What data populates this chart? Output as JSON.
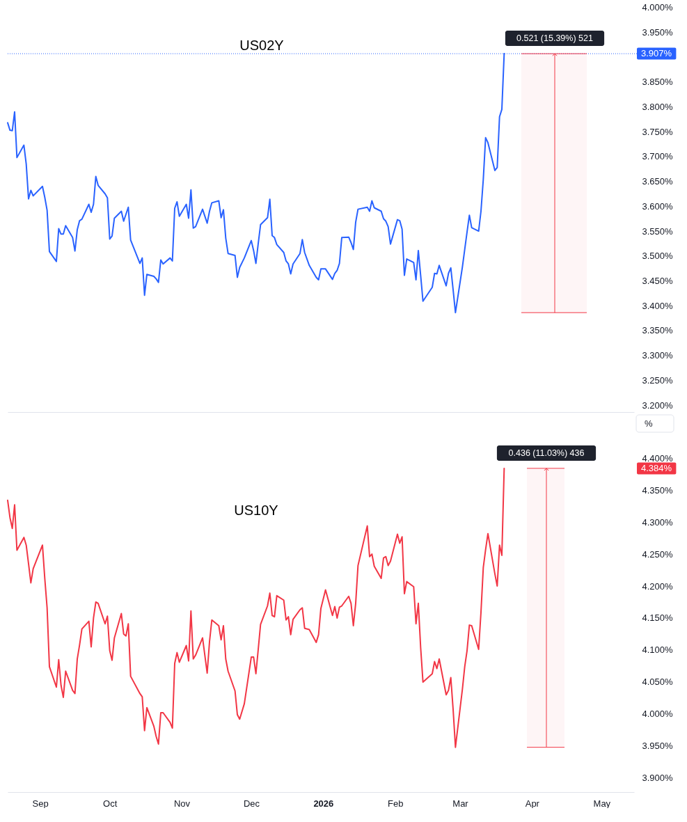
{
  "chart_data": [
    {
      "type": "line",
      "title": "US02Y",
      "x": [
        "2025-08-18",
        "2025-08-19",
        "2025-08-20",
        "2025-08-21",
        "2025-08-22",
        "2025-08-25",
        "2025-08-26",
        "2025-08-27",
        "2025-08-28",
        "2025-08-29",
        "2025-09-02",
        "2025-09-03",
        "2025-09-04",
        "2025-09-05",
        "2025-09-08",
        "2025-09-09",
        "2025-09-10",
        "2025-09-11",
        "2025-09-12",
        "2025-09-15",
        "2025-09-16",
        "2025-09-17",
        "2025-09-18",
        "2025-09-19",
        "2025-09-22",
        "2025-09-23",
        "2025-09-24",
        "2025-09-25",
        "2025-09-26",
        "2025-09-29",
        "2025-09-30",
        "2025-10-01",
        "2025-10-02",
        "2025-10-03",
        "2025-10-06",
        "2025-10-07",
        "2025-10-08",
        "2025-10-09",
        "2025-10-10",
        "2025-10-14",
        "2025-10-15",
        "2025-10-16",
        "2025-10-17",
        "2025-10-20",
        "2025-10-21",
        "2025-10-22",
        "2025-10-23",
        "2025-10-24",
        "2025-10-27",
        "2025-10-28",
        "2025-10-29",
        "2025-10-30",
        "2025-10-31",
        "2025-11-03",
        "2025-11-04",
        "2025-11-05",
        "2025-11-06",
        "2025-11-07",
        "2025-11-10",
        "2025-11-12",
        "2025-11-13",
        "2025-11-14",
        "2025-11-17",
        "2025-11-18",
        "2025-11-19",
        "2025-11-20",
        "2025-11-21",
        "2025-11-24",
        "2025-11-25",
        "2025-11-26",
        "2025-11-28",
        "2025-12-01",
        "2025-12-02",
        "2025-12-03",
        "2025-12-04",
        "2025-12-05",
        "2025-12-08",
        "2025-12-09",
        "2025-12-10",
        "2025-12-11",
        "2025-12-12",
        "2025-12-15",
        "2025-12-16",
        "2025-12-17",
        "2025-12-18",
        "2025-12-19",
        "2025-12-22",
        "2025-12-23",
        "2025-12-24",
        "2025-12-26",
        "2025-12-29",
        "2025-12-30",
        "2025-12-31",
        "2026-01-02",
        "2026-01-05",
        "2026-01-06",
        "2026-01-07",
        "2026-01-08",
        "2026-01-09",
        "2026-01-12",
        "2026-01-13",
        "2026-01-14",
        "2026-01-15",
        "2026-01-16",
        "2026-01-20",
        "2026-01-21",
        "2026-01-22",
        "2026-01-23",
        "2026-01-26",
        "2026-01-27",
        "2026-01-28",
        "2026-01-29",
        "2026-01-30",
        "2026-02-02",
        "2026-02-03",
        "2026-02-04",
        "2026-02-05",
        "2026-02-06",
        "2026-02-09",
        "2026-02-10",
        "2026-02-11",
        "2026-02-12",
        "2026-02-13",
        "2026-02-17",
        "2026-02-18",
        "2026-02-19",
        "2026-02-20",
        "2026-02-23",
        "2026-02-24",
        "2026-02-25",
        "2026-02-26",
        "2026-02-27",
        "2026-03-02",
        "2026-03-03",
        "2026-03-04",
        "2026-03-05",
        "2026-03-06",
        "2026-03-09",
        "2026-03-10",
        "2026-03-11",
        "2026-03-12",
        "2026-03-13",
        "2026-03-16",
        "2026-03-17",
        "2026-03-18",
        "2026-03-19",
        "2026-03-20"
      ],
      "series": [
        {
          "color": "#2962ff",
          "values": [
            3.768,
            3.753,
            3.752,
            3.79,
            3.698,
            3.723,
            3.685,
            3.615,
            3.632,
            3.621,
            3.64,
            3.618,
            3.592,
            3.509,
            3.489,
            3.555,
            3.544,
            3.544,
            3.561,
            3.537,
            3.51,
            3.553,
            3.571,
            3.574,
            3.604,
            3.588,
            3.604,
            3.66,
            3.642,
            3.625,
            3.617,
            3.534,
            3.54,
            3.576,
            3.59,
            3.57,
            3.584,
            3.598,
            3.532,
            3.485,
            3.496,
            3.421,
            3.463,
            3.459,
            3.454,
            3.447,
            3.492,
            3.484,
            3.496,
            3.49,
            3.596,
            3.609,
            3.58,
            3.604,
            3.576,
            3.633,
            3.556,
            3.559,
            3.594,
            3.566,
            3.59,
            3.607,
            3.611,
            3.577,
            3.593,
            3.536,
            3.505,
            3.501,
            3.457,
            3.477,
            3.496,
            3.531,
            3.511,
            3.485,
            3.525,
            3.563,
            3.577,
            3.614,
            3.541,
            3.537,
            3.523,
            3.507,
            3.49,
            3.484,
            3.464,
            3.484,
            3.505,
            3.533,
            3.507,
            3.481,
            3.457,
            3.452,
            3.474,
            3.474,
            3.453,
            3.465,
            3.471,
            3.485,
            3.537,
            3.538,
            3.527,
            3.513,
            3.568,
            3.594,
            3.598,
            3.59,
            3.611,
            3.597,
            3.59,
            3.575,
            3.57,
            3.559,
            3.524,
            3.573,
            3.571,
            3.554,
            3.461,
            3.494,
            3.487,
            3.452,
            3.511,
            3.461,
            3.409,
            3.437,
            3.465,
            3.464,
            3.481,
            3.44,
            3.465,
            3.476,
            3.432,
            3.386,
            3.478,
            3.513,
            3.548,
            3.582,
            3.557,
            3.55,
            3.59,
            3.654,
            3.738,
            3.728,
            3.672,
            3.678,
            3.78,
            3.795,
            3.907
          ]
        }
      ],
      "xlim": [
        "2025-08-18",
        "2026-05-15"
      ],
      "ylim": [
        3.186,
        4.015
      ],
      "yticks": [
        {
          "value": 4.0,
          "label": "4.000%"
        },
        {
          "value": 3.95,
          "label": "3.950%"
        },
        {
          "value": 3.85,
          "label": "3.850%"
        },
        {
          "value": 3.8,
          "label": "3.800%"
        },
        {
          "value": 3.75,
          "label": "3.750%"
        },
        {
          "value": 3.7,
          "label": "3.700%"
        },
        {
          "value": 3.65,
          "label": "3.650%"
        },
        {
          "value": 3.6,
          "label": "3.600%"
        },
        {
          "value": 3.55,
          "label": "3.550%"
        },
        {
          "value": 3.5,
          "label": "3.500%"
        },
        {
          "value": 3.45,
          "label": "3.450%"
        },
        {
          "value": 3.4,
          "label": "3.400%"
        },
        {
          "value": 3.35,
          "label": "3.350%"
        },
        {
          "value": 3.3,
          "label": "3.300%"
        },
        {
          "value": 3.25,
          "label": "3.250%"
        },
        {
          "value": 3.2,
          "label": "3.200%"
        }
      ],
      "tick_labels": "y",
      "ref_lines": [
        {
          "axis": "y",
          "value": 3.907,
          "label": "3.907%",
          "color": "#2962ff",
          "line_style": "dotted"
        }
      ],
      "bands": [
        {
          "axis": "y",
          "from": 3.386,
          "to": 3.907,
          "label": "0.521 (15.39%) 521",
          "color": "#f23645"
        }
      ]
    },
    {
      "type": "line",
      "title": "US10Y",
      "x": [
        "2025-08-18",
        "2025-08-19",
        "2025-08-20",
        "2025-08-21",
        "2025-08-22",
        "2025-08-25",
        "2025-08-26",
        "2025-08-27",
        "2025-08-28",
        "2025-08-29",
        "2025-09-02",
        "2025-09-03",
        "2025-09-04",
        "2025-09-05",
        "2025-09-08",
        "2025-09-09",
        "2025-09-10",
        "2025-09-11",
        "2025-09-12",
        "2025-09-15",
        "2025-09-16",
        "2025-09-17",
        "2025-09-18",
        "2025-09-19",
        "2025-09-22",
        "2025-09-23",
        "2025-09-24",
        "2025-09-25",
        "2025-09-26",
        "2025-09-29",
        "2025-09-30",
        "2025-10-01",
        "2025-10-02",
        "2025-10-03",
        "2025-10-06",
        "2025-10-07",
        "2025-10-08",
        "2025-10-09",
        "2025-10-10",
        "2025-10-14",
        "2025-10-15",
        "2025-10-16",
        "2025-10-17",
        "2025-10-20",
        "2025-10-21",
        "2025-10-22",
        "2025-10-23",
        "2025-10-24",
        "2025-10-27",
        "2025-10-28",
        "2025-10-29",
        "2025-10-30",
        "2025-10-31",
        "2025-11-03",
        "2025-11-04",
        "2025-11-05",
        "2025-11-06",
        "2025-11-07",
        "2025-11-10",
        "2025-11-12",
        "2025-11-13",
        "2025-11-14",
        "2025-11-17",
        "2025-11-18",
        "2025-11-19",
        "2025-11-20",
        "2025-11-21",
        "2025-11-24",
        "2025-11-25",
        "2025-11-26",
        "2025-11-28",
        "2025-12-01",
        "2025-12-02",
        "2025-12-03",
        "2025-12-04",
        "2025-12-05",
        "2025-12-08",
        "2025-12-09",
        "2025-12-10",
        "2025-12-11",
        "2025-12-12",
        "2025-12-15",
        "2025-12-16",
        "2025-12-17",
        "2025-12-18",
        "2025-12-19",
        "2025-12-22",
        "2025-12-23",
        "2025-12-24",
        "2025-12-26",
        "2025-12-29",
        "2025-12-30",
        "2025-12-31",
        "2026-01-02",
        "2026-01-05",
        "2026-01-06",
        "2026-01-07",
        "2026-01-08",
        "2026-01-09",
        "2026-01-12",
        "2026-01-13",
        "2026-01-14",
        "2026-01-15",
        "2026-01-16",
        "2026-01-20",
        "2026-01-21",
        "2026-01-22",
        "2026-01-23",
        "2026-01-26",
        "2026-01-27",
        "2026-01-28",
        "2026-01-29",
        "2026-01-30",
        "2026-02-02",
        "2026-02-03",
        "2026-02-04",
        "2026-02-05",
        "2026-02-06",
        "2026-02-09",
        "2026-02-10",
        "2026-02-11",
        "2026-02-12",
        "2026-02-13",
        "2026-02-17",
        "2026-02-18",
        "2026-02-19",
        "2026-02-20",
        "2026-02-23",
        "2026-02-24",
        "2026-02-25",
        "2026-02-26",
        "2026-02-27",
        "2026-03-02",
        "2026-03-03",
        "2026-03-04",
        "2026-03-05",
        "2026-03-06",
        "2026-03-09",
        "2026-03-10",
        "2026-03-11",
        "2026-03-12",
        "2026-03-13",
        "2026-03-16",
        "2026-03-17",
        "2026-03-18",
        "2026-03-19",
        "2026-03-20"
      ],
      "series": [
        {
          "color": "#f23645",
          "values": [
            4.334,
            4.307,
            4.29,
            4.327,
            4.256,
            4.276,
            4.264,
            4.235,
            4.205,
            4.227,
            4.264,
            4.212,
            4.166,
            4.074,
            4.042,
            4.085,
            4.045,
            4.026,
            4.067,
            4.037,
            4.032,
            4.086,
            4.108,
            4.133,
            4.145,
            4.105,
            4.15,
            4.175,
            4.173,
            4.141,
            4.153,
            4.099,
            4.084,
            4.119,
            4.157,
            4.125,
            4.122,
            4.141,
            4.059,
            4.032,
            4.027,
            3.974,
            4.01,
            3.981,
            3.965,
            3.953,
            4.002,
            4.002,
            3.987,
            3.978,
            4.079,
            4.096,
            4.081,
            4.107,
            4.083,
            4.161,
            4.086,
            4.092,
            4.119,
            4.064,
            4.113,
            4.147,
            4.138,
            4.116,
            4.138,
            4.086,
            4.067,
            4.036,
            3.999,
            3.992,
            4.016,
            4.089,
            4.089,
            4.063,
            4.101,
            4.14,
            4.169,
            4.189,
            4.154,
            4.152,
            4.185,
            4.178,
            4.147,
            4.152,
            4.124,
            4.148,
            4.163,
            4.166,
            4.134,
            4.132,
            4.112,
            4.124,
            4.165,
            4.194,
            4.154,
            4.168,
            4.15,
            4.167,
            4.169,
            4.184,
            4.173,
            4.138,
            4.173,
            4.232,
            4.294,
            4.246,
            4.25,
            4.231,
            4.212,
            4.244,
            4.246,
            4.232,
            4.239,
            4.281,
            4.267,
            4.277,
            4.188,
            4.207,
            4.199,
            4.141,
            4.173,
            4.104,
            4.05,
            4.063,
            4.082,
            4.071,
            4.086,
            4.03,
            4.037,
            4.057,
            4.007,
            3.948,
            4.039,
            4.074,
            4.099,
            4.139,
            4.138,
            4.101,
            4.159,
            4.229,
            4.257,
            4.282,
            4.219,
            4.2,
            4.264,
            4.248,
            4.384
          ]
        }
      ],
      "xlim": [
        "2025-08-18",
        "2026-05-15"
      ],
      "xticks": [
        {
          "value": "2025-09-01",
          "label": "Sep"
        },
        {
          "value": "2025-10-01",
          "label": "Oct"
        },
        {
          "value": "2025-11-01",
          "label": "Nov"
        },
        {
          "value": "2025-12-01",
          "label": "Dec"
        },
        {
          "value": "2026-01-01",
          "label": "2026"
        },
        {
          "value": "2026-02-01",
          "label": "Feb"
        },
        {
          "value": "2026-03-01",
          "label": "Mar"
        },
        {
          "value": "2026-04-01",
          "label": "Apr"
        },
        {
          "value": "2026-05-01",
          "label": "May"
        }
      ],
      "ylim": [
        3.878,
        4.472
      ],
      "yticks": [
        {
          "value": 4.4,
          "label": "4.400%"
        },
        {
          "value": 4.35,
          "label": "4.350%"
        },
        {
          "value": 4.3,
          "label": "4.300%"
        },
        {
          "value": 4.25,
          "label": "4.250%"
        },
        {
          "value": 4.2,
          "label": "4.200%"
        },
        {
          "value": 4.15,
          "label": "4.150%"
        },
        {
          "value": 4.1,
          "label": "4.100%"
        },
        {
          "value": 4.05,
          "label": "4.050%"
        },
        {
          "value": 4.0,
          "label": "4.000%"
        },
        {
          "value": 3.95,
          "label": "3.950%"
        },
        {
          "value": 3.9,
          "label": "3.900%"
        }
      ],
      "bands": [
        {
          "axis": "y",
          "from": 3.948,
          "to": 4.384,
          "label": "0.436 (11.03%) 436",
          "color": "#f23645"
        }
      ],
      "annotations": [
        "%",
        "4.384%"
      ]
    }
  ]
}
